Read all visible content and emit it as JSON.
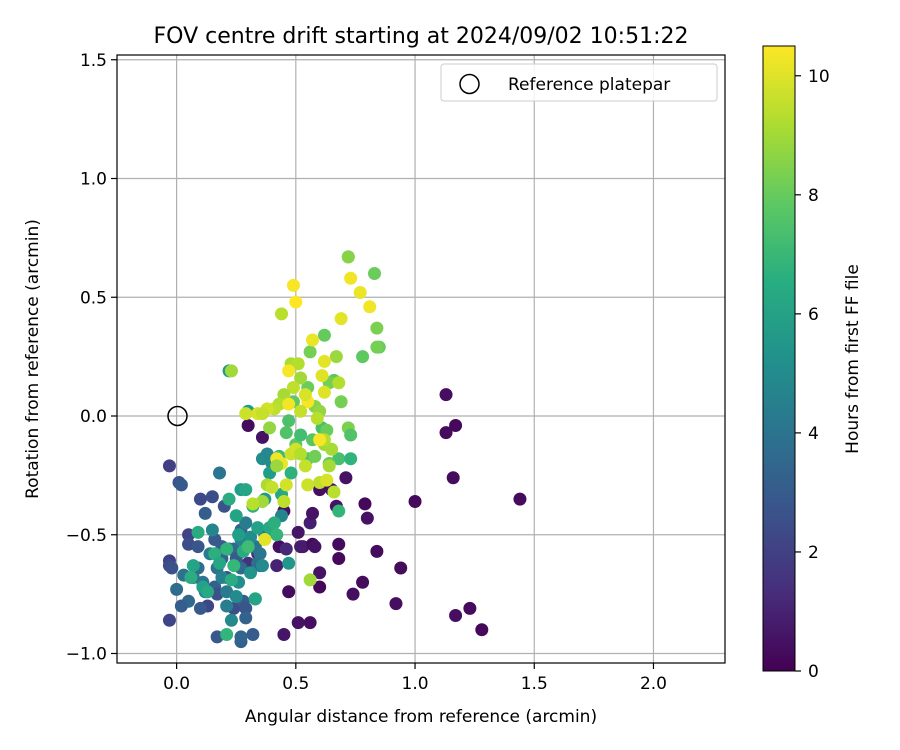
{
  "chart_data": {
    "type": "scatter",
    "title": "FOV centre drift starting at 2024/09/02 10:51:22",
    "xlabel": "Angular distance from reference (arcmin)",
    "ylabel": "Rotation from reference (arcmin)",
    "xlim": [
      -0.25,
      2.3
    ],
    "ylim": [
      -1.04,
      1.52
    ],
    "xticks": [
      0.0,
      0.5,
      1.0,
      1.5,
      2.0
    ],
    "xtick_labels": [
      "0.0",
      "0.5",
      "1.0",
      "1.5",
      "2.0"
    ],
    "yticks": [
      -1.0,
      -0.5,
      0.0,
      0.5,
      1.0,
      1.5
    ],
    "ytick_labels": [
      "−1.0",
      "−0.5",
      "0.0",
      "0.5",
      "1.0",
      "1.5"
    ],
    "grid": true,
    "legend": {
      "placement": "top-right",
      "entries": [
        "Reference platepar"
      ]
    },
    "reference_point": {
      "x": 0.0,
      "y": 0.0,
      "label": "Reference platepar"
    },
    "colorbar": {
      "label": "Hours from first FF file",
      "colormap": "viridis",
      "range": [
        0,
        10.5
      ],
      "ticks": [
        0,
        2,
        4,
        6,
        8,
        10
      ],
      "tick_labels": [
        "0",
        "2",
        "4",
        "6",
        "8",
        "10"
      ]
    },
    "points": [
      [
        0.3,
        -0.04,
        0.3
      ],
      [
        0.36,
        -0.09,
        0.5
      ],
      [
        0.43,
        -0.55,
        0.4
      ],
      [
        0.45,
        -0.92,
        0.6
      ],
      [
        0.47,
        -0.74,
        0.3
      ],
      [
        0.51,
        -0.87,
        0.5
      ],
      [
        0.56,
        -0.87,
        0.4
      ],
      [
        0.6,
        -0.72,
        0.2
      ],
      [
        0.6,
        -0.66,
        0.5
      ],
      [
        0.53,
        -0.55,
        0.7
      ],
      [
        0.56,
        -0.45,
        0.9
      ],
      [
        0.57,
        -0.41,
        0.5
      ],
      [
        0.57,
        -0.54,
        0.3
      ],
      [
        0.6,
        -0.31,
        0.4
      ],
      [
        0.62,
        -0.28,
        0.3
      ],
      [
        0.67,
        -0.38,
        0.5
      ],
      [
        0.68,
        -0.54,
        0.3
      ],
      [
        0.68,
        -0.6,
        0.2
      ],
      [
        0.74,
        -0.75,
        0.4
      ],
      [
        0.78,
        -0.7,
        0.3
      ],
      [
        0.79,
        -0.37,
        0.2
      ],
      [
        0.8,
        -0.43,
        0.5
      ],
      [
        0.84,
        -0.57,
        0.3
      ],
      [
        0.92,
        -0.79,
        0.4
      ],
      [
        0.94,
        -0.64,
        0.3
      ],
      [
        1.0,
        -0.36,
        0.2
      ],
      [
        1.13,
        -0.07,
        0.3
      ],
      [
        1.13,
        0.09,
        0.4
      ],
      [
        1.16,
        -0.26,
        0.3
      ],
      [
        1.17,
        -0.04,
        0.2
      ],
      [
        1.17,
        -0.84,
        0.4
      ],
      [
        1.23,
        -0.81,
        0.3
      ],
      [
        1.28,
        -0.9,
        0.2
      ],
      [
        1.44,
        -0.35,
        0.3
      ],
      [
        0.71,
        -0.26,
        0.5
      ],
      [
        0.65,
        -0.31,
        0.4
      ],
      [
        0.45,
        -0.4,
        0.5
      ],
      [
        0.51,
        -0.49,
        0.6
      ],
      [
        0.52,
        -0.55,
        0.8
      ],
      [
        0.58,
        -0.55,
        0.5
      ],
      [
        0.42,
        -0.63,
        1.0
      ],
      [
        0.46,
        -0.56,
        1.2
      ],
      [
        0.3,
        -0.62,
        1.5
      ],
      [
        0.34,
        -0.58,
        1.4
      ],
      [
        -0.03,
        -0.86,
        2.2
      ],
      [
        -0.03,
        -0.61,
        2.0
      ],
      [
        -0.03,
        -0.63,
        2.4
      ],
      [
        -0.02,
        -0.64,
        2.6
      ],
      [
        -0.03,
        -0.21,
        2.0
      ],
      [
        0.01,
        -0.28,
        2.7
      ],
      [
        0.02,
        -0.29,
        2.9
      ],
      [
        0.05,
        -0.5,
        2.1
      ],
      [
        0.05,
        -0.54,
        2.5
      ],
      [
        0.09,
        -0.55,
        2.8
      ],
      [
        0.1,
        -0.35,
        2.3
      ],
      [
        0.12,
        -0.41,
        3.1
      ],
      [
        0.13,
        -0.8,
        2.2
      ],
      [
        0.15,
        -0.34,
        2.5
      ],
      [
        0.16,
        -0.52,
        2.9
      ],
      [
        0.16,
        -0.72,
        3.2
      ],
      [
        0.17,
        -0.75,
        2.6
      ],
      [
        0.19,
        -0.55,
        3.0
      ],
      [
        0.19,
        -0.6,
        3.3
      ],
      [
        0.2,
        -0.38,
        2.7
      ],
      [
        0.21,
        -0.68,
        2.4
      ],
      [
        0.22,
        -0.56,
        3.4
      ],
      [
        0.24,
        -0.81,
        2.5
      ],
      [
        0.24,
        -0.56,
        3.5
      ],
      [
        0.25,
        -0.6,
        3.0
      ],
      [
        0.27,
        -0.48,
        3.4
      ],
      [
        0.27,
        -0.64,
        3.6
      ],
      [
        0.28,
        -0.78,
        3.1
      ],
      [
        0.29,
        -0.81,
        2.8
      ],
      [
        0.29,
        -0.85,
        3.3
      ],
      [
        0.3,
        -0.55,
        3.8
      ],
      [
        0.33,
        -0.55,
        4.0
      ],
      [
        0.34,
        -0.62,
        3.9
      ],
      [
        0.35,
        -0.63,
        3.7
      ],
      [
        0.35,
        -0.58,
        4.1
      ],
      [
        0.17,
        -0.93,
        2.9
      ],
      [
        0.27,
        -0.95,
        3.2
      ],
      [
        0.27,
        -0.93,
        3.4
      ],
      [
        0.32,
        -0.92,
        3.0
      ],
      [
        0.1,
        -0.81,
        2.9
      ],
      [
        0.05,
        -0.78,
        3.5
      ],
      [
        0.02,
        -0.8,
        3.1
      ],
      [
        0.0,
        -0.73,
        3.7
      ],
      [
        0.03,
        -0.67,
        3.9
      ],
      [
        0.07,
        -0.68,
        4.2
      ],
      [
        0.09,
        -0.64,
        3.8
      ],
      [
        0.11,
        -0.7,
        4.1
      ],
      [
        0.12,
        -0.74,
        4.6
      ],
      [
        0.14,
        -0.58,
        4.4
      ],
      [
        0.15,
        -0.48,
        4.8
      ],
      [
        0.17,
        -0.64,
        4.0
      ],
      [
        0.19,
        -0.68,
        4.7
      ],
      [
        0.21,
        -0.74,
        4.3
      ],
      [
        0.21,
        -0.8,
        4.5
      ],
      [
        0.23,
        -0.86,
        4.9
      ],
      [
        0.25,
        -0.76,
        5.0
      ],
      [
        0.26,
        -0.7,
        5.2
      ],
      [
        0.27,
        -0.52,
        4.6
      ],
      [
        0.29,
        -0.45,
        4.4
      ],
      [
        0.31,
        -0.51,
        5.1
      ],
      [
        0.31,
        -0.66,
        5.4
      ],
      [
        0.33,
        -0.77,
        5.6
      ],
      [
        0.36,
        -0.63,
        5.0
      ],
      [
        0.37,
        -0.5,
        4.2
      ],
      [
        0.4,
        -0.48,
        5.3
      ],
      [
        0.44,
        -0.42,
        4.8
      ],
      [
        0.47,
        -0.62,
        5.5
      ],
      [
        0.18,
        -0.24,
        4.1
      ],
      [
        0.22,
        0.19,
        5.6
      ],
      [
        0.3,
        0.02,
        5.8
      ],
      [
        0.36,
        -0.18,
        5.1
      ],
      [
        0.38,
        -0.16,
        4.9
      ],
      [
        0.4,
        -0.2,
        5.0
      ],
      [
        0.27,
        -0.31,
        5.9
      ],
      [
        0.29,
        -0.31,
        6.2
      ],
      [
        0.09,
        -0.49,
        6.4
      ],
      [
        0.07,
        -0.63,
        6.1
      ],
      [
        0.06,
        -0.68,
        6.5
      ],
      [
        0.11,
        -0.72,
        6.0
      ],
      [
        0.13,
        -0.74,
        6.3
      ],
      [
        0.16,
        -0.58,
        6.6
      ],
      [
        0.18,
        -0.62,
        6.2
      ],
      [
        0.21,
        -0.56,
        6.8
      ],
      [
        0.22,
        -0.35,
        6.5
      ],
      [
        0.25,
        -0.42,
        6.1
      ],
      [
        0.26,
        -0.5,
        5.9
      ],
      [
        0.28,
        -0.57,
        6.4
      ],
      [
        0.32,
        -0.38,
        6.7
      ],
      [
        0.34,
        -0.47,
        6.0
      ],
      [
        0.37,
        -0.35,
        5.7
      ],
      [
        0.39,
        -0.24,
        5.8
      ],
      [
        0.39,
        -0.47,
        6.3
      ],
      [
        0.41,
        -0.45,
        6.6
      ],
      [
        0.21,
        -0.92,
        6.9
      ],
      [
        0.23,
        -0.69,
        6.5
      ],
      [
        0.33,
        -0.77,
        6.1
      ],
      [
        0.24,
        -0.63,
        7.0
      ],
      [
        0.3,
        -0.55,
        7.2
      ],
      [
        0.42,
        -0.5,
        6.9
      ],
      [
        0.43,
        -0.17,
        7.1
      ],
      [
        0.44,
        -0.33,
        6.3
      ],
      [
        0.48,
        -0.24,
        6.7
      ],
      [
        0.68,
        -0.4,
        6.9
      ],
      [
        0.68,
        -0.18,
        7.4
      ],
      [
        0.73,
        -0.18,
        6.8
      ],
      [
        0.46,
        -0.07,
        7.6
      ],
      [
        0.47,
        -0.02,
        7.5
      ],
      [
        0.49,
        0.06,
        7.9
      ],
      [
        0.5,
        -0.12,
        7.8
      ],
      [
        0.52,
        -0.08,
        7.3
      ],
      [
        0.55,
        -0.18,
        7.6
      ],
      [
        0.57,
        -0.1,
        7.7
      ],
      [
        0.58,
        -0.17,
        8.2
      ],
      [
        0.61,
        -0.05,
        7.4
      ],
      [
        0.63,
        -0.06,
        8.1
      ],
      [
        0.64,
        -0.2,
        7.9
      ],
      [
        0.66,
        0.15,
        7.8
      ],
      [
        0.69,
        0.06,
        8.3
      ],
      [
        0.72,
        -0.05,
        8.4
      ],
      [
        0.73,
        -0.08,
        7.6
      ],
      [
        0.72,
        0.67,
        8.0
      ],
      [
        0.83,
        0.6,
        8.1
      ],
      [
        0.84,
        0.37,
        8.4
      ],
      [
        0.85,
        0.29,
        8.0
      ],
      [
        0.84,
        0.29,
        8.3
      ],
      [
        0.78,
        0.25,
        7.9
      ],
      [
        0.56,
        0.27,
        8.3
      ],
      [
        0.62,
        0.34,
        8.0
      ],
      [
        0.64,
        0.14,
        8.3
      ],
      [
        0.55,
        0.12,
        8.1
      ],
      [
        0.58,
        0.04,
        8.6
      ],
      [
        0.6,
        0.02,
        8.8
      ],
      [
        0.62,
        -0.12,
        9.0
      ],
      [
        0.65,
        -0.14,
        9.1
      ],
      [
        0.67,
        0.25,
        8.9
      ],
      [
        0.72,
        0.67,
        8.6
      ],
      [
        0.52,
        0.16,
        9.0
      ],
      [
        0.48,
        0.22,
        9.2
      ],
      [
        0.51,
        0.22,
        9.3
      ],
      [
        0.44,
        0.43,
        9.4
      ],
      [
        0.49,
        0.12,
        9.5
      ],
      [
        0.45,
        0.09,
        9.1
      ],
      [
        0.43,
        0.05,
        9.3
      ],
      [
        0.41,
        0.03,
        9.5
      ],
      [
        0.38,
        0.03,
        9.8
      ],
      [
        0.34,
        0.01,
        9.9
      ],
      [
        0.36,
        0.01,
        9.6
      ],
      [
        0.29,
        0.01,
        9.7
      ],
      [
        0.38,
        -0.29,
        9.2
      ],
      [
        0.36,
        -0.36,
        9.0
      ],
      [
        0.32,
        -0.37,
        9.4
      ],
      [
        0.4,
        -0.3,
        9.6
      ],
      [
        0.45,
        -0.36,
        9.5
      ],
      [
        0.46,
        -0.29,
        9.8
      ],
      [
        0.48,
        -0.16,
        9.7
      ],
      [
        0.5,
        -0.14,
        9.8
      ],
      [
        0.52,
        -0.16,
        9.3
      ],
      [
        0.54,
        -0.21,
        9.6
      ],
      [
        0.55,
        -0.29,
        9.7
      ],
      [
        0.6,
        -0.28,
        9.5
      ],
      [
        0.63,
        -0.27,
        9.9
      ],
      [
        0.66,
        -0.32,
        9.4
      ],
      [
        0.64,
        -0.21,
        9.1
      ],
      [
        0.62,
        -0.1,
        9.3
      ],
      [
        0.44,
        -0.2,
        10.2
      ],
      [
        0.42,
        -0.18,
        10.3
      ],
      [
        0.37,
        -0.52,
        10.1
      ],
      [
        0.23,
        0.19,
        9.0
      ],
      [
        0.56,
        -0.69,
        9.0
      ],
      [
        0.49,
        0.55,
        10.4
      ],
      [
        0.5,
        0.48,
        10.5
      ],
      [
        0.57,
        0.32,
        10.2
      ],
      [
        0.62,
        0.23,
        10.1
      ],
      [
        0.69,
        0.41,
        10.1
      ],
      [
        0.73,
        0.58,
        10.3
      ],
      [
        0.77,
        0.52,
        10.2
      ],
      [
        0.81,
        0.46,
        10.3
      ],
      [
        0.47,
        0.19,
        10.4
      ],
      [
        0.47,
        0.05,
        10.3
      ],
      [
        0.55,
        0.06,
        10.4
      ],
      [
        0.62,
        0.1,
        10.0
      ],
      [
        0.6,
        -0.1,
        10.4
      ],
      [
        0.61,
        0.17,
        10.0
      ],
      [
        0.68,
        0.14,
        9.3
      ],
      [
        0.52,
        0.02,
        9.6
      ],
      [
        0.54,
        0.09,
        9.9
      ],
      [
        0.59,
        -0.01,
        9.4
      ],
      [
        0.39,
        -0.05,
        8.8
      ],
      [
        0.42,
        -0.21,
        8.9
      ]
    ]
  }
}
